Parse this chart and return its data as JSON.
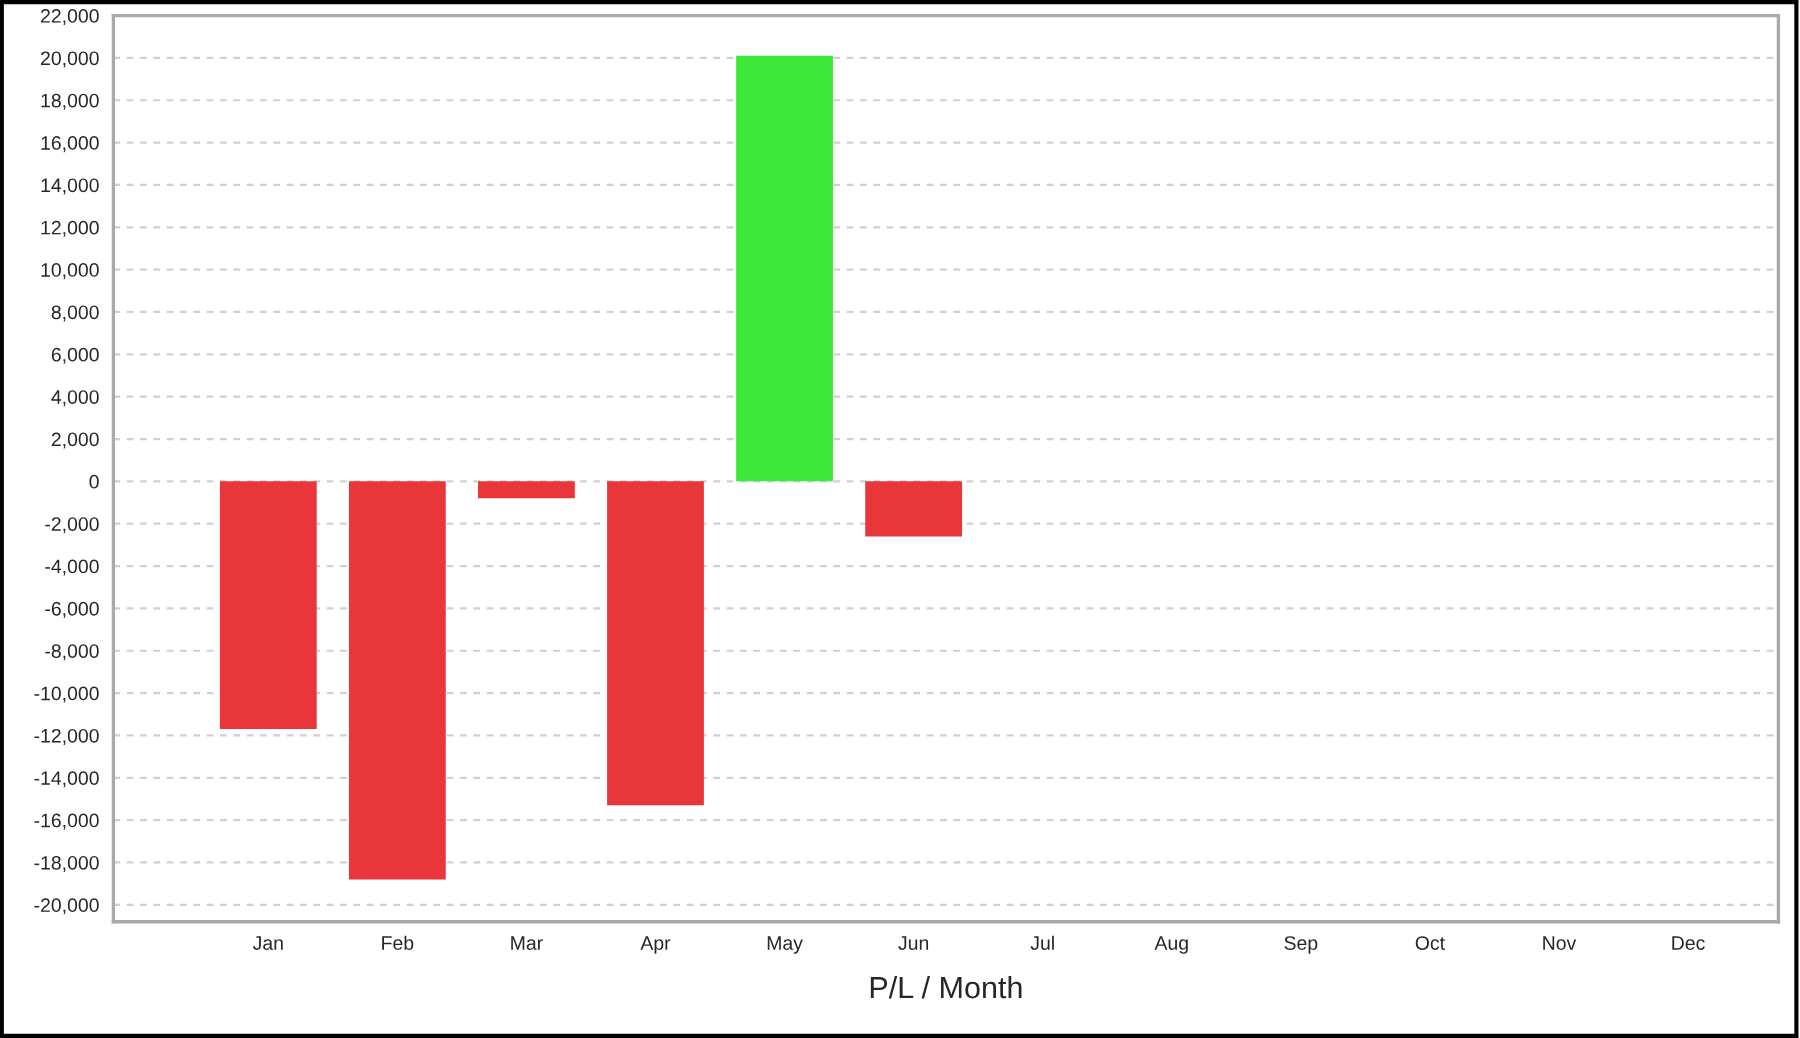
{
  "chart_data": {
    "type": "bar",
    "xlabel": "P/L / Month",
    "categories": [
      "Jan",
      "Feb",
      "Mar",
      "Apr",
      "May",
      "Jun",
      "Jul",
      "Aug",
      "Sep",
      "Oct",
      "Nov",
      "Dec"
    ],
    "values": [
      -11700,
      -18800,
      -800,
      -15300,
      20100,
      -2600,
      null,
      null,
      null,
      null,
      null,
      null
    ],
    "colors": [
      "#e8363b",
      "#e8363b",
      "#e8363b",
      "#e8363b",
      "#3de83a",
      "#e8363b",
      null,
      null,
      null,
      null,
      null,
      null
    ],
    "ylim": [
      -20800,
      22000
    ],
    "yticks": [
      {
        "value": -20000,
        "label": "-20,000"
      },
      {
        "value": -18000,
        "label": "-18,000"
      },
      {
        "value": -16000,
        "label": "-16,000"
      },
      {
        "value": -14000,
        "label": "-14,000"
      },
      {
        "value": -12000,
        "label": "-12,000"
      },
      {
        "value": -10000,
        "label": "-10,000"
      },
      {
        "value": -8000,
        "label": "-8,000"
      },
      {
        "value": -6000,
        "label": "-6,000"
      },
      {
        "value": -4000,
        "label": "-4,000"
      },
      {
        "value": -2000,
        "label": "-2,000"
      },
      0,
      {
        "value": 2000,
        "label": "2,000"
      },
      {
        "value": 4000,
        "label": "4,000"
      },
      {
        "value": 6000,
        "label": "6,000"
      },
      {
        "value": 8000,
        "label": "8,000"
      },
      {
        "value": 10000,
        "label": "10,000"
      },
      {
        "value": 12000,
        "label": "12,000"
      },
      {
        "value": 14000,
        "label": "14,000"
      },
      {
        "value": 16000,
        "label": "16,000"
      },
      {
        "value": 18000,
        "label": "18,000"
      },
      {
        "value": 20000,
        "label": "20,000"
      },
      {
        "value": 22000,
        "label": "22,000"
      }
    ],
    "grid": "y"
  }
}
